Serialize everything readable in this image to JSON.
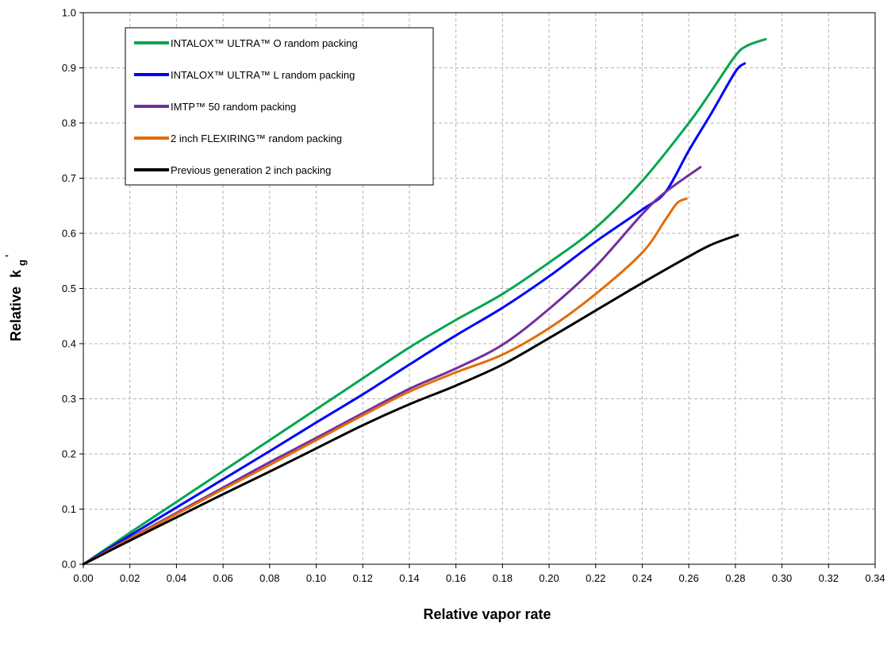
{
  "chart_data": {
    "type": "line",
    "xlabel": "Relative vapor rate",
    "ylabel": {
      "main": "Relative",
      "symbol": "k",
      "subscript": "g",
      "superscript": "'"
    },
    "xlim": [
      0,
      0.34
    ],
    "ylim": [
      0,
      1.0
    ],
    "x_ticks": [
      "0.00",
      "0.02",
      "0.04",
      "0.06",
      "0.08",
      "0.10",
      "0.12",
      "0.14",
      "0.16",
      "0.18",
      "0.20",
      "0.22",
      "0.24",
      "0.26",
      "0.28",
      "0.30",
      "0.32",
      "0.34"
    ],
    "y_ticks": [
      "0.0",
      "0.1",
      "0.2",
      "0.3",
      "0.4",
      "0.5",
      "0.6",
      "0.7",
      "0.8",
      "0.9",
      "1.0"
    ],
    "grid": true,
    "legend_position": "top-left",
    "series": [
      {
        "name": "INTALOX™ ULTRA™ O random packing",
        "color": "#00a550",
        "points": [
          [
            0,
            0
          ],
          [
            0.02,
            0.057
          ],
          [
            0.04,
            0.113
          ],
          [
            0.06,
            0.169
          ],
          [
            0.08,
            0.225
          ],
          [
            0.1,
            0.281
          ],
          [
            0.12,
            0.337
          ],
          [
            0.14,
            0.393
          ],
          [
            0.16,
            0.443
          ],
          [
            0.18,
            0.49
          ],
          [
            0.2,
            0.547
          ],
          [
            0.22,
            0.61
          ],
          [
            0.24,
            0.695
          ],
          [
            0.26,
            0.8
          ],
          [
            0.27,
            0.86
          ],
          [
            0.28,
            0.922
          ],
          [
            0.285,
            0.94
          ],
          [
            0.293,
            0.952
          ]
        ]
      },
      {
        "name": "INTALOX™ ULTRA™ L random packing",
        "color": "#0000ff",
        "points": [
          [
            0,
            0
          ],
          [
            0.02,
            0.052
          ],
          [
            0.04,
            0.103
          ],
          [
            0.06,
            0.154
          ],
          [
            0.08,
            0.205
          ],
          [
            0.1,
            0.257
          ],
          [
            0.12,
            0.308
          ],
          [
            0.14,
            0.362
          ],
          [
            0.16,
            0.415
          ],
          [
            0.18,
            0.465
          ],
          [
            0.2,
            0.522
          ],
          [
            0.22,
            0.585
          ],
          [
            0.24,
            0.643
          ],
          [
            0.25,
            0.675
          ],
          [
            0.26,
            0.75
          ],
          [
            0.27,
            0.82
          ],
          [
            0.28,
            0.893
          ],
          [
            0.284,
            0.908
          ]
        ]
      },
      {
        "name": "IMTP™ 50 random packing",
        "color": "#7030a0",
        "points": [
          [
            0,
            0
          ],
          [
            0.02,
            0.047
          ],
          [
            0.04,
            0.093
          ],
          [
            0.06,
            0.139
          ],
          [
            0.08,
            0.185
          ],
          [
            0.1,
            0.229
          ],
          [
            0.12,
            0.274
          ],
          [
            0.14,
            0.318
          ],
          [
            0.16,
            0.355
          ],
          [
            0.18,
            0.398
          ],
          [
            0.2,
            0.463
          ],
          [
            0.22,
            0.54
          ],
          [
            0.24,
            0.635
          ],
          [
            0.25,
            0.675
          ],
          [
            0.265,
            0.72
          ]
        ]
      },
      {
        "name": "2 inch FLEXIRING™  random packing",
        "color": "#e36c09",
        "points": [
          [
            0,
            0
          ],
          [
            0.02,
            0.046
          ],
          [
            0.04,
            0.091
          ],
          [
            0.06,
            0.136
          ],
          [
            0.08,
            0.18
          ],
          [
            0.1,
            0.225
          ],
          [
            0.12,
            0.27
          ],
          [
            0.14,
            0.313
          ],
          [
            0.16,
            0.348
          ],
          [
            0.18,
            0.38
          ],
          [
            0.2,
            0.428
          ],
          [
            0.22,
            0.49
          ],
          [
            0.24,
            0.565
          ],
          [
            0.25,
            0.625
          ],
          [
            0.255,
            0.655
          ],
          [
            0.259,
            0.663
          ]
        ]
      },
      {
        "name": "Previous generation 2 inch packing",
        "color": "#000000",
        "points": [
          [
            0,
            0
          ],
          [
            0.02,
            0.043
          ],
          [
            0.04,
            0.085
          ],
          [
            0.06,
            0.127
          ],
          [
            0.08,
            0.168
          ],
          [
            0.1,
            0.21
          ],
          [
            0.12,
            0.252
          ],
          [
            0.14,
            0.29
          ],
          [
            0.16,
            0.324
          ],
          [
            0.18,
            0.362
          ],
          [
            0.2,
            0.41
          ],
          [
            0.22,
            0.46
          ],
          [
            0.24,
            0.51
          ],
          [
            0.26,
            0.558
          ],
          [
            0.27,
            0.58
          ],
          [
            0.281,
            0.597
          ]
        ]
      }
    ]
  }
}
